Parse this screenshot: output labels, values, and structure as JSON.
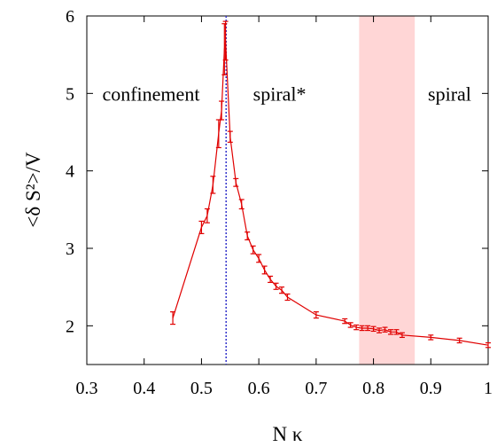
{
  "chart_data": {
    "type": "line",
    "xlabel": "N κ",
    "ylabel": "<δ S²>/V",
    "xlim": [
      0.3,
      1.0
    ],
    "ylim": [
      1.5,
      6.0
    ],
    "xticks": [
      "0.3",
      "0.4",
      "0.5",
      "0.6",
      "0.7",
      "0.8",
      "0.9",
      "1"
    ],
    "yticks": [
      "2",
      "3",
      "4",
      "5",
      "6"
    ],
    "grid": false,
    "colors": {
      "series": "#e00000",
      "vline": "#3b3bcc",
      "band": "#ffd6d6"
    },
    "vline_x": 0.543,
    "shaded_band": [
      0.775,
      0.872
    ],
    "annotations": [
      {
        "text": "confinement",
        "x": 0.327,
        "y": 5.0
      },
      {
        "text": "spiral*",
        "x": 0.59,
        "y": 5.0
      },
      {
        "text": "spiral",
        "x": 0.895,
        "y": 5.0
      }
    ],
    "series": [
      {
        "x": [
          0.45,
          0.5,
          0.51,
          0.52,
          0.53,
          0.535,
          0.54,
          0.542,
          0.55,
          0.56,
          0.57,
          0.58,
          0.59,
          0.6,
          0.61,
          0.62,
          0.63,
          0.64,
          0.65,
          0.7,
          0.75,
          0.76,
          0.77,
          0.78,
          0.79,
          0.8,
          0.81,
          0.82,
          0.83,
          0.84,
          0.85,
          0.9,
          0.95,
          1.0
        ],
        "y": [
          2.1,
          3.27,
          3.42,
          3.82,
          4.48,
          4.78,
          5.57,
          5.68,
          4.44,
          3.85,
          3.57,
          3.16,
          2.98,
          2.87,
          2.72,
          2.6,
          2.51,
          2.46,
          2.37,
          2.14,
          2.06,
          2.01,
          1.98,
          1.97,
          1.97,
          1.96,
          1.94,
          1.95,
          1.92,
          1.92,
          1.88,
          1.85,
          1.81,
          1.75
        ],
        "err": [
          0.08,
          0.08,
          0.09,
          0.11,
          0.18,
          0.12,
          0.33,
          0.25,
          0.07,
          0.05,
          0.06,
          0.05,
          0.05,
          0.05,
          0.05,
          0.04,
          0.04,
          0.04,
          0.04,
          0.04,
          0.03,
          0.03,
          0.03,
          0.03,
          0.03,
          0.03,
          0.03,
          0.03,
          0.03,
          0.03,
          0.03,
          0.03,
          0.03,
          0.03
        ]
      }
    ]
  }
}
